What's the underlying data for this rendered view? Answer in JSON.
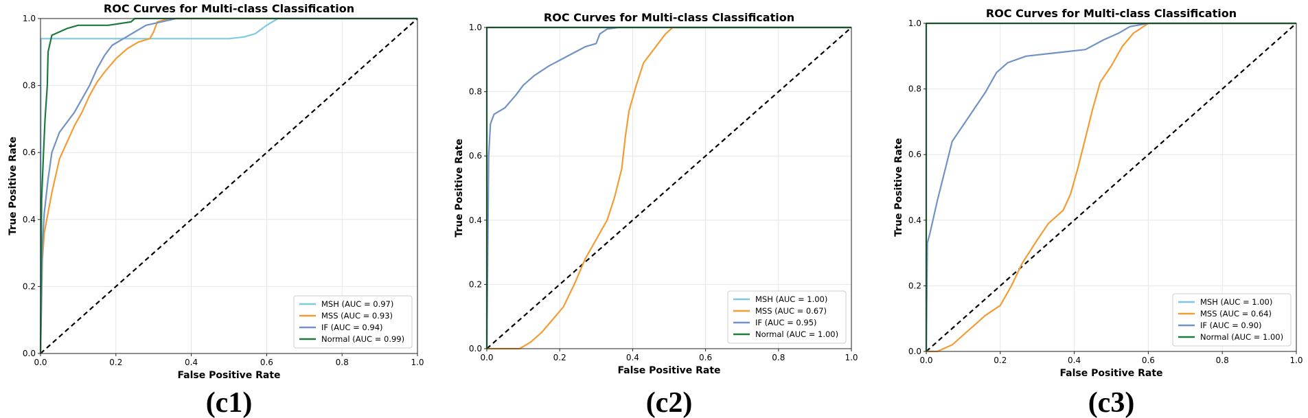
{
  "chart_data": [
    {
      "type": "line",
      "caption": "(c1)",
      "title": "ROC Curves for Multi-class Classification",
      "xlabel": "False Positive Rate",
      "ylabel": "True Positive Rate",
      "xlim": [
        0,
        1
      ],
      "ylim": [
        0,
        1
      ],
      "xticks": [
        "0.0",
        "0.2",
        "0.4",
        "0.6",
        "0.8",
        "1.0"
      ],
      "yticks": [
        "0.0",
        "0.2",
        "0.4",
        "0.6",
        "0.8",
        "1.0"
      ],
      "grid": true,
      "legend_position": "lower-right",
      "series": [
        {
          "name": "MSH (AUC = 0.97)",
          "color": "#7ec8e3",
          "points": [
            [
              0,
              0
            ],
            [
              0.001,
              0.94
            ],
            [
              0.3,
              0.94
            ],
            [
              0.5,
              0.94
            ],
            [
              0.54,
              0.945
            ],
            [
              0.57,
              0.955
            ],
            [
              0.6,
              0.98
            ],
            [
              0.63,
              1.0
            ],
            [
              1,
              1
            ]
          ]
        },
        {
          "name": "MSS (AUC = 0.93)",
          "color": "#f39c34",
          "points": [
            [
              0,
              0
            ],
            [
              0.005,
              0.28
            ],
            [
              0.01,
              0.36
            ],
            [
              0.02,
              0.42
            ],
            [
              0.03,
              0.48
            ],
            [
              0.04,
              0.53
            ],
            [
              0.05,
              0.58
            ],
            [
              0.07,
              0.63
            ],
            [
              0.09,
              0.68
            ],
            [
              0.11,
              0.72
            ],
            [
              0.13,
              0.77
            ],
            [
              0.15,
              0.81
            ],
            [
              0.17,
              0.84
            ],
            [
              0.2,
              0.88
            ],
            [
              0.23,
              0.91
            ],
            [
              0.26,
              0.93
            ],
            [
              0.29,
              0.94
            ],
            [
              0.3,
              0.96
            ],
            [
              0.31,
              0.99
            ],
            [
              0.34,
              1.0
            ],
            [
              1,
              1
            ]
          ]
        },
        {
          "name": "IF (AUC = 0.94)",
          "color": "#7092c4",
          "points": [
            [
              0,
              0
            ],
            [
              0.005,
              0.32
            ],
            [
              0.01,
              0.42
            ],
            [
              0.02,
              0.52
            ],
            [
              0.03,
              0.6
            ],
            [
              0.05,
              0.66
            ],
            [
              0.07,
              0.69
            ],
            [
              0.09,
              0.72
            ],
            [
              0.11,
              0.76
            ],
            [
              0.13,
              0.8
            ],
            [
              0.15,
              0.85
            ],
            [
              0.17,
              0.89
            ],
            [
              0.19,
              0.92
            ],
            [
              0.22,
              0.94
            ],
            [
              0.25,
              0.96
            ],
            [
              0.28,
              0.98
            ],
            [
              0.32,
              0.99
            ],
            [
              0.36,
              1.0
            ],
            [
              1,
              1
            ]
          ]
        },
        {
          "name": "Normal (AUC = 0.99)",
          "color": "#1e7a3c",
          "points": [
            [
              0,
              0
            ],
            [
              0.003,
              0.46
            ],
            [
              0.008,
              0.6
            ],
            [
              0.012,
              0.7
            ],
            [
              0.018,
              0.8
            ],
            [
              0.02,
              0.9
            ],
            [
              0.03,
              0.95
            ],
            [
              0.05,
              0.96
            ],
            [
              0.07,
              0.97
            ],
            [
              0.1,
              0.98
            ],
            [
              0.18,
              0.98
            ],
            [
              0.24,
              0.99
            ],
            [
              0.25,
              1.0
            ],
            [
              1,
              1
            ]
          ]
        }
      ]
    },
    {
      "type": "line",
      "caption": "(c2)",
      "title": "ROC Curves for Multi-class Classification",
      "xlabel": "False Positive Rate",
      "ylabel": "True Positive Rate",
      "xlim": [
        0,
        1
      ],
      "ylim": [
        0,
        1
      ],
      "xticks": [
        "0.0",
        "0.2",
        "0.4",
        "0.6",
        "0.8",
        "1.0"
      ],
      "yticks": [
        "0.0",
        "0.2",
        "0.4",
        "0.6",
        "0.8",
        "1.0"
      ],
      "grid": true,
      "legend_position": "lower-right",
      "series": [
        {
          "name": "MSH (AUC = 1.00)",
          "color": "#7ec8e3",
          "points": [
            [
              0,
              0
            ],
            [
              0,
              1.0
            ],
            [
              1,
              1
            ]
          ]
        },
        {
          "name": "MSS (AUC = 0.67)",
          "color": "#f39c34",
          "points": [
            [
              0,
              0
            ],
            [
              0.09,
              0.0
            ],
            [
              0.12,
              0.02
            ],
            [
              0.15,
              0.05
            ],
            [
              0.18,
              0.09
            ],
            [
              0.21,
              0.13
            ],
            [
              0.24,
              0.2
            ],
            [
              0.27,
              0.28
            ],
            [
              0.3,
              0.34
            ],
            [
              0.33,
              0.4
            ],
            [
              0.35,
              0.47
            ],
            [
              0.37,
              0.56
            ],
            [
              0.38,
              0.66
            ],
            [
              0.39,
              0.74
            ],
            [
              0.41,
              0.82
            ],
            [
              0.43,
              0.89
            ],
            [
              0.45,
              0.92
            ],
            [
              0.47,
              0.95
            ],
            [
              0.49,
              0.98
            ],
            [
              0.51,
              1.0
            ],
            [
              1,
              1
            ]
          ]
        },
        {
          "name": "IF (AUC = 0.95)",
          "color": "#7092c4",
          "points": [
            [
              0,
              0
            ],
            [
              0.005,
              0.6
            ],
            [
              0.01,
              0.7
            ],
            [
              0.02,
              0.73
            ],
            [
              0.05,
              0.75
            ],
            [
              0.08,
              0.79
            ],
            [
              0.1,
              0.82
            ],
            [
              0.13,
              0.85
            ],
            [
              0.17,
              0.88
            ],
            [
              0.22,
              0.91
            ],
            [
              0.27,
              0.94
            ],
            [
              0.3,
              0.95
            ],
            [
              0.31,
              0.98
            ],
            [
              0.33,
              0.995
            ],
            [
              0.36,
              1.0
            ],
            [
              1,
              1
            ]
          ]
        },
        {
          "name": "Normal (AUC = 1.00)",
          "color": "#1e7a3c",
          "points": [
            [
              0,
              0
            ],
            [
              0,
              1.0
            ],
            [
              1,
              1
            ]
          ]
        }
      ]
    },
    {
      "type": "line",
      "caption": "(c3)",
      "title": "ROC Curves for Multi-class Classification",
      "xlabel": "False Positive Rate",
      "ylabel": "True Positive Rate",
      "xlim": [
        0,
        1
      ],
      "ylim": [
        0,
        1
      ],
      "xticks": [
        "0.0",
        "0.2",
        "0.4",
        "0.6",
        "0.8",
        "1.0"
      ],
      "yticks": [
        "0.0",
        "0.2",
        "0.4",
        "0.6",
        "0.8",
        "1.0"
      ],
      "grid": true,
      "legend_position": "lower-right",
      "series": [
        {
          "name": "MSH (AUC = 1.00)",
          "color": "#7ec8e3",
          "points": [
            [
              0,
              0
            ],
            [
              0,
              1.0
            ],
            [
              1,
              1
            ]
          ]
        },
        {
          "name": "MSS (AUC = 0.64)",
          "color": "#f39c34",
          "points": [
            [
              0,
              0
            ],
            [
              0.03,
              0.0
            ],
            [
              0.07,
              0.02
            ],
            [
              0.1,
              0.05
            ],
            [
              0.13,
              0.08
            ],
            [
              0.16,
              0.11
            ],
            [
              0.2,
              0.14
            ],
            [
              0.23,
              0.2
            ],
            [
              0.26,
              0.27
            ],
            [
              0.3,
              0.34
            ],
            [
              0.33,
              0.39
            ],
            [
              0.37,
              0.43
            ],
            [
              0.39,
              0.48
            ],
            [
              0.41,
              0.56
            ],
            [
              0.43,
              0.65
            ],
            [
              0.45,
              0.74
            ],
            [
              0.47,
              0.82
            ],
            [
              0.5,
              0.87
            ],
            [
              0.53,
              0.93
            ],
            [
              0.56,
              0.97
            ],
            [
              0.6,
              1.0
            ],
            [
              1,
              1
            ]
          ]
        },
        {
          "name": "IF (AUC = 0.90)",
          "color": "#7092c4",
          "points": [
            [
              0,
              0
            ],
            [
              0.003,
              0.33
            ],
            [
              0.01,
              0.36
            ],
            [
              0.03,
              0.46
            ],
            [
              0.05,
              0.55
            ],
            [
              0.07,
              0.64
            ],
            [
              0.1,
              0.69
            ],
            [
              0.13,
              0.74
            ],
            [
              0.16,
              0.79
            ],
            [
              0.19,
              0.85
            ],
            [
              0.22,
              0.88
            ],
            [
              0.27,
              0.9
            ],
            [
              0.35,
              0.91
            ],
            [
              0.43,
              0.92
            ],
            [
              0.48,
              0.95
            ],
            [
              0.52,
              0.97
            ],
            [
              0.55,
              0.99
            ],
            [
              0.6,
              1.0
            ],
            [
              1,
              1
            ]
          ]
        },
        {
          "name": "Normal (AUC = 1.00)",
          "color": "#1e7a3c",
          "points": [
            [
              0,
              0
            ],
            [
              0,
              1.0
            ],
            [
              1,
              1
            ]
          ]
        }
      ]
    }
  ]
}
